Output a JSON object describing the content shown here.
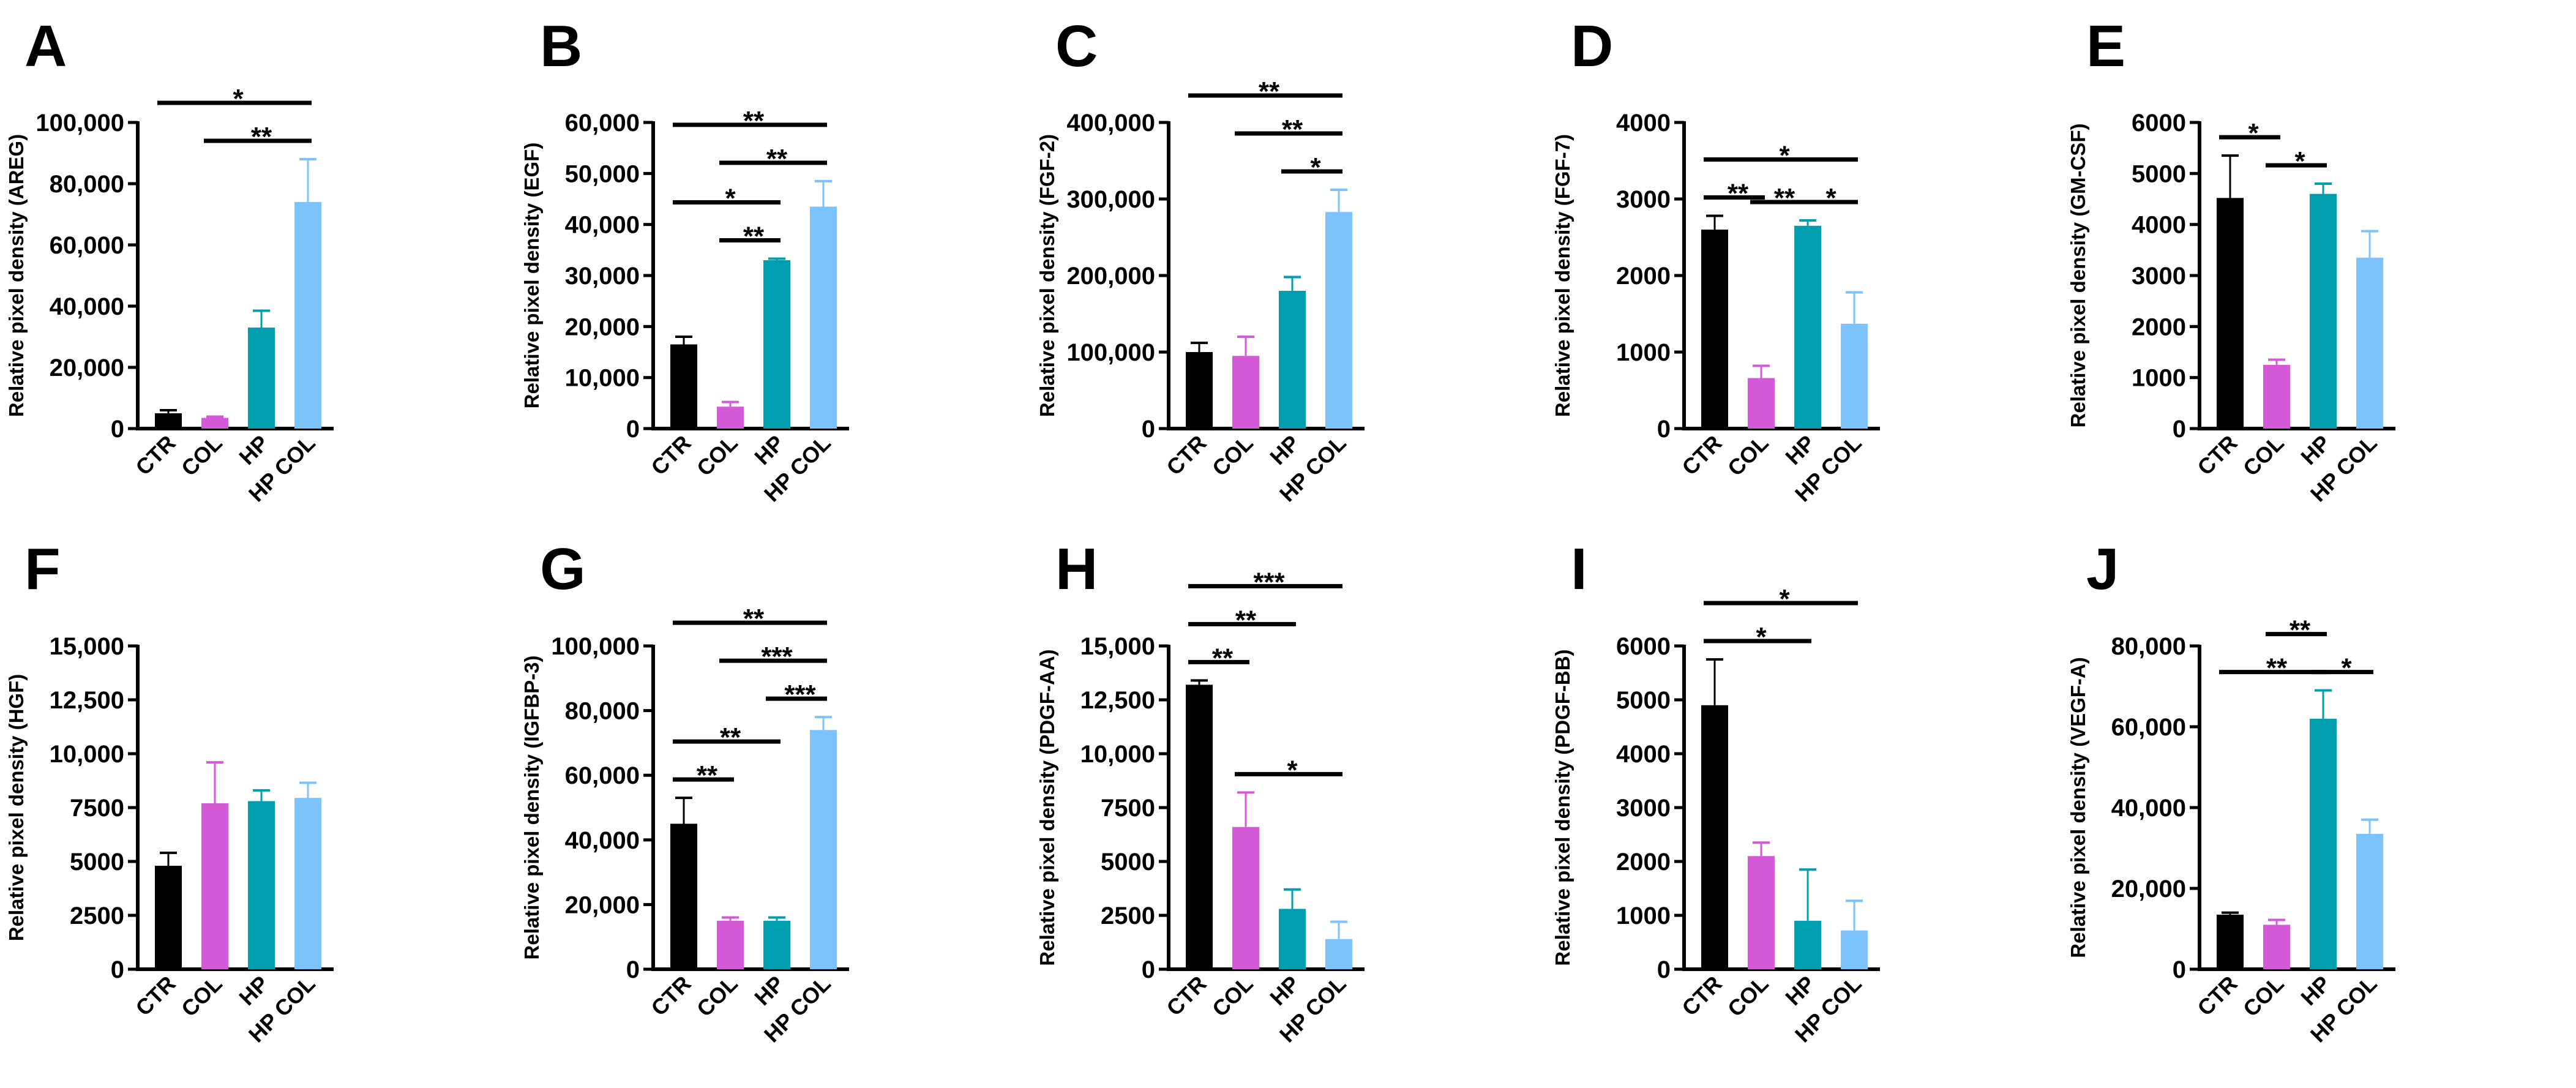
{
  "chart_data": {
    "type": "bar",
    "categories": [
      "CTR",
      "COL",
      "HP",
      "HP COL"
    ],
    "colors": [
      "#000000",
      "#d45ad8",
      "#009fb0",
      "#7cc3fb"
    ],
    "panels": [
      {
        "letter": "A",
        "ylabel": "Relative pixel density (AREG)",
        "ylim": [
          0,
          100000
        ],
        "ticks": [
          0,
          20000,
          40000,
          60000,
          80000,
          100000
        ],
        "tick_labels": [
          "0",
          "20,000",
          "40,000",
          "60,000",
          "80,000",
          "100,000"
        ],
        "values": [
          5000,
          3500,
          33000,
          74000
        ],
        "error_upper": [
          6000,
          3900,
          38500,
          88000
        ],
        "comparisons": [
          [
            1,
            3,
            "**"
          ],
          [
            0,
            3,
            "*"
          ]
        ]
      },
      {
        "letter": "B",
        "ylabel": "Relative pixel density (EGF)",
        "ylim": [
          0,
          60000
        ],
        "ticks": [
          0,
          10000,
          20000,
          30000,
          40000,
          50000,
          60000
        ],
        "tick_labels": [
          "0",
          "10,000",
          "20,000",
          "30,000",
          "40,000",
          "50,000",
          "60,000"
        ],
        "values": [
          16500,
          4300,
          33000,
          43500
        ],
        "error_upper": [
          18000,
          5200,
          33300,
          48500
        ],
        "comparisons": [
          [
            1,
            2,
            "**"
          ],
          [
            0,
            2,
            "*"
          ],
          [
            1,
            3,
            "**"
          ],
          [
            0,
            3,
            "**"
          ]
        ]
      },
      {
        "letter": "C",
        "ylabel": "Relative pixel density (FGF-2)",
        "ylim": [
          0,
          400000
        ],
        "ticks": [
          0,
          100000,
          200000,
          300000,
          400000
        ],
        "tick_labels": [
          "0",
          "100,000",
          "200,000",
          "300,000",
          "400,000"
        ],
        "values": [
          100000,
          95000,
          180000,
          283000
        ],
        "error_upper": [
          112000,
          120000,
          198000,
          312000
        ],
        "comparisons": [
          [
            2,
            3,
            "*"
          ],
          [
            1,
            3,
            "**"
          ],
          [
            0,
            3,
            "**"
          ]
        ]
      },
      {
        "letter": "D",
        "ylabel": "Relative pixel density (FGF-7)",
        "ylim": [
          0,
          4000
        ],
        "ticks": [
          0,
          1000,
          2000,
          3000,
          4000
        ],
        "tick_labels": [
          "0",
          "1000",
          "2000",
          "3000",
          "4000"
        ],
        "values": [
          2600,
          660,
          2650,
          1370
        ],
        "error_upper": [
          2780,
          820,
          2720,
          1780
        ],
        "comparisons": [
          [
            0,
            1,
            "**"
          ],
          [
            1,
            2,
            "**"
          ],
          [
            2,
            3,
            "*"
          ],
          [
            0,
            3,
            "*"
          ]
        ]
      },
      {
        "letter": "E",
        "ylabel": "Relative pixel density (GM-CSF)",
        "ylim": [
          0,
          6000
        ],
        "ticks": [
          0,
          1000,
          2000,
          3000,
          4000,
          5000,
          6000
        ],
        "tick_labels": [
          "0",
          "1000",
          "2000",
          "3000",
          "4000",
          "5000",
          "6000"
        ],
        "values": [
          4520,
          1250,
          4600,
          3350
        ],
        "error_upper": [
          5350,
          1350,
          4800,
          3870
        ],
        "comparisons": [
          [
            0,
            1,
            "*"
          ],
          [
            1,
            2,
            "*"
          ]
        ]
      },
      {
        "letter": "F",
        "ylabel": "Relative pixel density (HGF)",
        "ylim": [
          0,
          15000
        ],
        "ticks": [
          0,
          2500,
          5000,
          7500,
          10000,
          12500,
          15000
        ],
        "tick_labels": [
          "0",
          "2500",
          "5000",
          "7500",
          "10,000",
          "12,500",
          "15,000"
        ],
        "values": [
          4800,
          7700,
          7800,
          7950
        ],
        "error_upper": [
          5400,
          9600,
          8300,
          8650
        ],
        "comparisons": []
      },
      {
        "letter": "G",
        "ylabel": "Relative pixel density (IGFBP-3)",
        "ylim": [
          0,
          100000
        ],
        "ticks": [
          0,
          20000,
          40000,
          60000,
          80000,
          100000
        ],
        "tick_labels": [
          "0",
          "20,000",
          "40,000",
          "60,000",
          "80,000",
          "100,000"
        ],
        "values": [
          45000,
          15000,
          15000,
          74000
        ],
        "error_upper": [
          53000,
          16000,
          16000,
          78000
        ],
        "comparisons": [
          [
            0,
            1,
            "**"
          ],
          [
            0,
            2,
            "**"
          ],
          [
            2,
            3,
            "***"
          ],
          [
            1,
            3,
            "***"
          ],
          [
            0,
            3,
            "**"
          ]
        ]
      },
      {
        "letter": "H",
        "ylabel": "Relative pixel density (PDGF-AA)",
        "ylim": [
          0,
          15000
        ],
        "ticks": [
          0,
          2500,
          5000,
          7500,
          10000,
          12500,
          15000
        ],
        "tick_labels": [
          "0",
          "2500",
          "5000",
          "7500",
          "10,000",
          "12,500",
          "15,000"
        ],
        "values": [
          13200,
          6600,
          2800,
          1400
        ],
        "error_upper": [
          13400,
          8200,
          3700,
          2200
        ],
        "comparisons": [
          [
            1,
            3,
            "*"
          ],
          [
            0,
            1,
            "**"
          ],
          [
            0,
            2,
            "**"
          ],
          [
            0,
            3,
            "***"
          ]
        ]
      },
      {
        "letter": "I",
        "ylabel": "Relative pixel density (PDGF-BB)",
        "ylim": [
          0,
          6000
        ],
        "ticks": [
          0,
          1000,
          2000,
          3000,
          4000,
          5000,
          6000
        ],
        "tick_labels": [
          "0",
          "1000",
          "2000",
          "3000",
          "4000",
          "5000",
          "6000"
        ],
        "values": [
          4900,
          2100,
          900,
          720
        ],
        "error_upper": [
          5750,
          2350,
          1850,
          1270
        ],
        "comparisons": [
          [
            0,
            2,
            "*"
          ],
          [
            0,
            3,
            "*"
          ]
        ]
      },
      {
        "letter": "J",
        "ylabel": "Relative pixel density (VEGF-A)",
        "ylim": [
          0,
          80000
        ],
        "ticks": [
          0,
          20000,
          40000,
          60000,
          80000
        ],
        "tick_labels": [
          "0",
          "20,000",
          "40,000",
          "60,000",
          "80,000"
        ],
        "values": [
          13500,
          11000,
          62000,
          33500
        ],
        "error_upper": [
          14000,
          12200,
          69000,
          37000
        ],
        "comparisons": [
          [
            2,
            3,
            "*"
          ],
          [
            0,
            2,
            "**"
          ],
          [
            1,
            2,
            "**"
          ]
        ]
      }
    ]
  }
}
